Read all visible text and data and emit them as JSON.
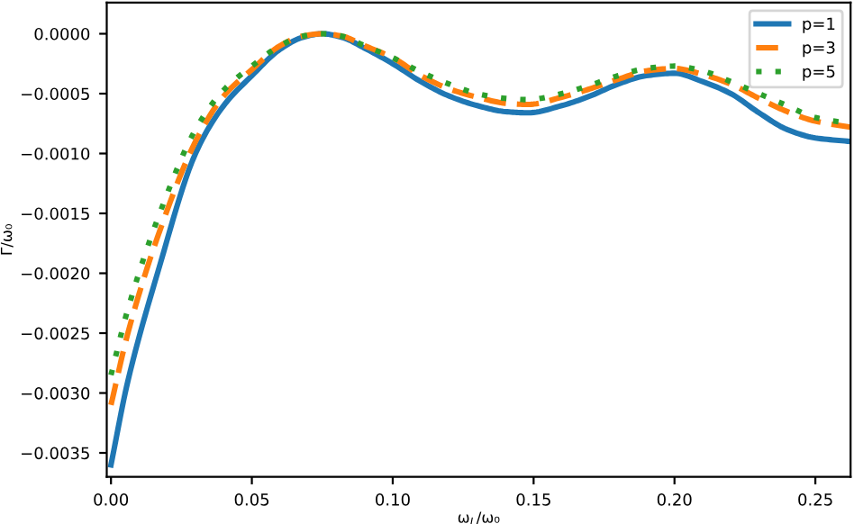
{
  "chart_data": {
    "type": "line",
    "xlabel": "ω$_{L}$/ω₀",
    "ylabel": "Γ/ω₀",
    "legend": "top right",
    "grid": false,
    "marker": "none",
    "xlim": [
      -0.0015,
      0.2625
    ],
    "ylim": [
      -0.0037,
      0.00026
    ],
    "xticks": [
      {
        "value": 0,
        "label": "0.00"
      },
      {
        "value": 0.05,
        "label": "0.05"
      },
      {
        "value": 0.1,
        "label": "0.10"
      },
      {
        "value": 0.15,
        "label": "0.15"
      },
      {
        "value": 0.2,
        "label": "0.20"
      },
      {
        "value": 0.25,
        "label": "0.25"
      }
    ],
    "yticks": [
      {
        "value": 0,
        "label": "0.0000"
      },
      {
        "value": -0.0005,
        "label": "−0.0005"
      },
      {
        "value": -0.001,
        "label": "−0.0010"
      },
      {
        "value": -0.0015,
        "label": "−0.0015"
      },
      {
        "value": -0.002,
        "label": "−0.0020"
      },
      {
        "value": -0.0025,
        "label": "−0.0025"
      },
      {
        "value": -0.003,
        "label": "−0.0030"
      },
      {
        "value": -0.0035,
        "label": "−0.0035"
      }
    ],
    "x": [
      0,
      0.006,
      0.0165,
      0.03,
      0.04,
      0.05,
      0.06,
      0.068,
      0.075,
      0.082,
      0.09,
      0.1,
      0.11,
      0.12,
      0.13,
      0.14,
      0.148,
      0.16,
      0.17,
      0.18,
      0.19,
      0.2,
      0.21,
      0.22,
      0.23,
      0.24,
      0.25,
      0.2625
    ],
    "series": [
      {
        "name": "p=1",
        "color": "#1f77b4",
        "line_style": "solid",
        "values": [
          -0.0036,
          -0.0029,
          -0.002,
          -0.001,
          -0.0006,
          -0.00035,
          -0.00013,
          -3e-05,
          0,
          -3e-05,
          -0.00012,
          -0.00025,
          -0.0004,
          -0.00052,
          -0.0006,
          -0.00065,
          -0.00066,
          -0.0006,
          -0.00052,
          -0.00042,
          -0.00035,
          -0.00033,
          -0.0004,
          -0.0005,
          -0.00066,
          -0.0008,
          -0.00087,
          -0.0009
        ]
      },
      {
        "name": "p=3",
        "color": "#ff7f0e",
        "line_style": "dashed",
        "values": [
          -0.0031,
          -0.0025,
          -0.0017,
          -0.0009,
          -0.00052,
          -0.0003,
          -0.0001,
          -2e-05,
          0,
          -2e-05,
          -0.0001,
          -0.0002,
          -0.00035,
          -0.00046,
          -0.00053,
          -0.00058,
          -0.00059,
          -0.00053,
          -0.00046,
          -0.00038,
          -0.00031,
          -0.00029,
          -0.00034,
          -0.00042,
          -0.00054,
          -0.00065,
          -0.00073,
          -0.00078
        ]
      },
      {
        "name": "p=5",
        "color": "#2ca02c",
        "line_style": "dotted",
        "values": [
          -0.00285,
          -0.0023,
          -0.00155,
          -0.0008,
          -0.00047,
          -0.00027,
          -0.0001,
          -2e-05,
          0,
          -2e-05,
          -0.0001,
          -0.0002,
          -0.00032,
          -0.00042,
          -0.0005,
          -0.00054,
          -0.00055,
          -0.0005,
          -0.00043,
          -0.00035,
          -0.00029,
          -0.00027,
          -0.00031,
          -0.0004,
          -0.0005,
          -0.0006,
          -0.0007,
          -0.00075
        ]
      }
    ]
  }
}
